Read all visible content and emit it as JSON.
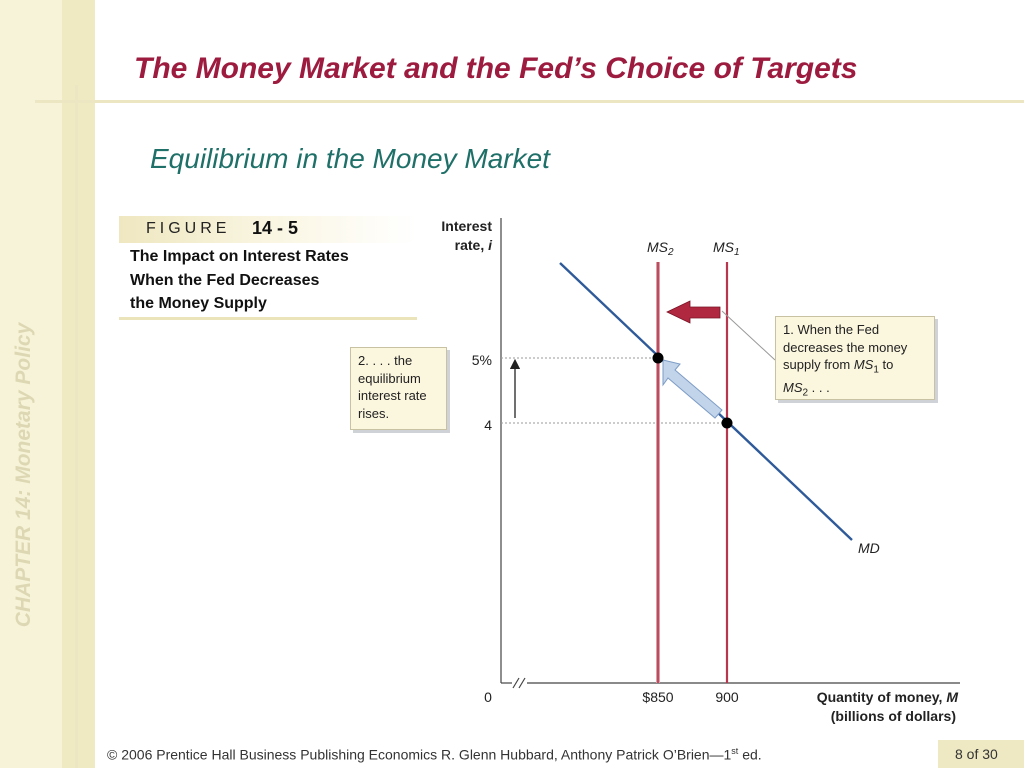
{
  "sidebar": {
    "chapter_label": "CHAPTER 14:  Monetary Policy"
  },
  "slide": {
    "title": "The Money Market and the Fed’s Choice of Targets",
    "subtitle": "Equilibrium in the Money Market"
  },
  "figure": {
    "word": "FIGURE",
    "number": "14 - 5",
    "caption_lines": [
      "The Impact on Interest Rates",
      "When the Fed Decreases",
      "the Money Supply"
    ]
  },
  "graph": {
    "y_axis_label_1": "Interest",
    "y_axis_label_2": "rate, ",
    "y_axis_label_var": "i",
    "x_axis_label_1": "Quantity of money, ",
    "x_axis_label_var": "M",
    "x_axis_label_2": "(billions of dollars)",
    "origin": "0",
    "ytick_high": "5%",
    "ytick_low": "4",
    "xtick_left": "$850",
    "xtick_right": "900",
    "ms2_base": "MS",
    "ms2_sub": "2",
    "ms1_base": "MS",
    "ms1_sub": "1",
    "md_label": "MD",
    "colors": {
      "supply": "#b8374e",
      "supply_light": "#d9a0a8",
      "demand": "#2f5a9a",
      "arrow_fill": "#c2d4ea",
      "left_arrow": "#b02840"
    }
  },
  "notes": {
    "left": [
      "2. . . . the",
      "equilibrium",
      "interest rate",
      "rises."
    ],
    "right_line1": "1. When the Fed",
    "right_line2": "decreases the money",
    "right_line3_a": "supply from ",
    "right_line3_var": "MS",
    "right_line3_sub": "1",
    "right_line3_b": " to",
    "right_line4_var": "MS",
    "right_line4_sub": "2",
    "right_line4_b": " . . ."
  },
  "footer": {
    "text": "© 2006 Prentice Hall Business Publishing   Economics  R. Glenn Hubbard, Anthony Patrick O’Brien—1",
    "text_sup": "st",
    "text_end": " ed.",
    "page": "8 of 30"
  }
}
